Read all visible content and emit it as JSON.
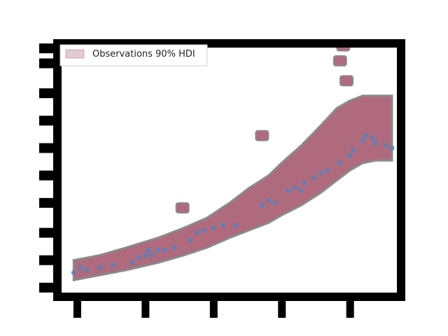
{
  "chart_data": {
    "type": "area",
    "title": "",
    "xlabel": "",
    "ylabel": "",
    "xlim": [
      0.0,
      1.0
    ],
    "ylim": [
      0.0,
      1.0
    ],
    "grid": false,
    "legend": {
      "placement": "top-left",
      "entries": [
        "Observations 90% HDI"
      ]
    },
    "band": {
      "name": "Observations 90% HDI",
      "color": "#b06a7e",
      "x": [
        0.02,
        0.06,
        0.1,
        0.18,
        0.28,
        0.36,
        0.43,
        0.5,
        0.56,
        0.62,
        0.66,
        0.72,
        0.78,
        0.83,
        0.87,
        0.91,
        0.95,
        1.0
      ],
      "lower": [
        0.05,
        0.06,
        0.07,
        0.09,
        0.12,
        0.15,
        0.18,
        0.22,
        0.25,
        0.28,
        0.31,
        0.35,
        0.4,
        0.45,
        0.49,
        0.52,
        0.53,
        0.53
      ],
      "upper": [
        0.13,
        0.14,
        0.15,
        0.18,
        0.22,
        0.26,
        0.3,
        0.36,
        0.42,
        0.47,
        0.52,
        0.59,
        0.67,
        0.74,
        0.77,
        0.79,
        0.79,
        0.79
      ]
    },
    "outlier_points": {
      "color": "#b06a7e",
      "x": [
        0.355,
        0.6,
        0.84,
        0.85,
        0.86
      ],
      "y": [
        0.34,
        0.63,
        0.93,
        0.99,
        0.85
      ]
    },
    "observed": {
      "color": "#5b7fb8",
      "x": [
        0.02,
        0.04,
        0.06,
        0.1,
        0.14,
        0.2,
        0.22,
        0.24,
        0.25,
        0.26,
        0.28,
        0.3,
        0.33,
        0.38,
        0.4,
        0.42,
        0.45,
        0.48,
        0.52,
        0.6,
        0.62,
        0.64,
        0.68,
        0.7,
        0.72,
        0.73,
        0.76,
        0.78,
        0.8,
        0.84,
        0.87,
        0.88,
        0.91,
        0.92,
        0.94,
        0.95,
        0.98,
        1.0
      ],
      "y": [
        0.08,
        0.1,
        0.09,
        0.1,
        0.11,
        0.12,
        0.14,
        0.15,
        0.17,
        0.15,
        0.17,
        0.17,
        0.18,
        0.21,
        0.24,
        0.25,
        0.26,
        0.27,
        0.27,
        0.35,
        0.37,
        0.36,
        0.41,
        0.42,
        0.41,
        0.44,
        0.46,
        0.48,
        0.49,
        0.52,
        0.55,
        0.57,
        0.61,
        0.63,
        0.62,
        0.6,
        0.59,
        0.58
      ]
    }
  }
}
